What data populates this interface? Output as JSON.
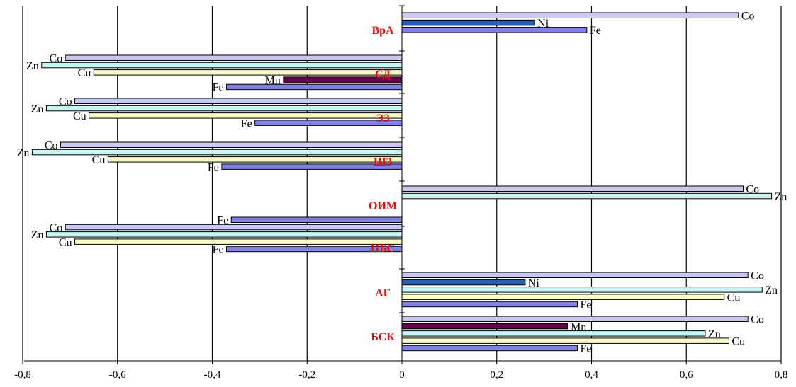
{
  "chart_data": {
    "type": "bar",
    "orientation": "horizontal",
    "xlim": [
      -0.8,
      0.8
    ],
    "x_ticks": [
      "-0,8",
      "-0,6",
      "-0,4",
      "-0,2",
      "0",
      "0,2",
      "0,4",
      "0,6",
      "0,8"
    ],
    "grid": "vertical",
    "colors": {
      "Co": "#c8c8f0",
      "Ni": "#2060b8",
      "Fe": "#8080e8",
      "Zn": "#c8f4f4",
      "Cu": "#fafac8",
      "Mn": "#6a0050"
    },
    "groups": [
      {
        "name": "ВрА",
        "bars": [
          {
            "element": "Co",
            "value": 0.71
          },
          {
            "element": "Ni",
            "value": 0.28
          },
          {
            "element": "Fe",
            "value": 0.39
          }
        ]
      },
      {
        "name": "СД",
        "bars": [
          {
            "element": "Co",
            "value": -0.71
          },
          {
            "element": "Zn",
            "value": -0.76
          },
          {
            "element": "Cu",
            "value": -0.65
          },
          {
            "element": "Mn",
            "value": -0.25
          },
          {
            "element": "Fe",
            "value": -0.37
          }
        ]
      },
      {
        "name": "ЭЗ",
        "bars": [
          {
            "element": "Co",
            "value": -0.69
          },
          {
            "element": "Zn",
            "value": -0.75
          },
          {
            "element": "Cu",
            "value": -0.66
          },
          {
            "element": "Fe",
            "value": -0.31
          }
        ]
      },
      {
        "name": "ШЗ",
        "bars": [
          {
            "element": "Co",
            "value": -0.72
          },
          {
            "element": "Zn",
            "value": -0.78
          },
          {
            "element": "Cu",
            "value": -0.62
          },
          {
            "element": "Fe",
            "value": -0.38
          }
        ]
      },
      {
        "name": "ОИМ",
        "bars": [
          {
            "element": "Co",
            "value": 0.72
          },
          {
            "element": "Zn",
            "value": 0.78
          }
        ]
      },
      {
        "name": "НБС",
        "bars": [
          {
            "element": "Fe",
            "value": -0.36
          },
          {
            "element": "Co",
            "value": -0.71
          },
          {
            "element": "Zn",
            "value": -0.75
          },
          {
            "element": "Cu",
            "value": -0.69
          },
          {
            "element": "Fe",
            "value": -0.37
          }
        ]
      },
      {
        "name": "АГ",
        "bars": [
          {
            "element": "Co",
            "value": 0.73
          },
          {
            "element": "Ni",
            "value": 0.26
          },
          {
            "element": "Zn",
            "value": 0.76
          },
          {
            "element": "Cu",
            "value": 0.68
          },
          {
            "element": "Fe",
            "value": 0.37
          }
        ]
      },
      {
        "name": "БСК",
        "bars": [
          {
            "element": "Co",
            "value": 0.73
          },
          {
            "element": "Mn",
            "value": 0.35
          },
          {
            "element": "Zn",
            "value": 0.64
          },
          {
            "element": "Cu",
            "value": 0.69
          },
          {
            "element": "Fe",
            "value": 0.37
          }
        ]
      }
    ]
  }
}
